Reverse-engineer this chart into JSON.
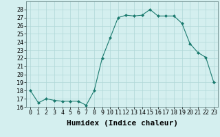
{
  "x": [
    0,
    1,
    2,
    3,
    4,
    5,
    6,
    7,
    8,
    9,
    10,
    11,
    12,
    13,
    14,
    15,
    16,
    17,
    18,
    19,
    20,
    21,
    22,
    23
  ],
  "y": [
    18,
    16.5,
    17,
    16.8,
    16.7,
    16.7,
    16.7,
    16.2,
    18,
    22,
    24.5,
    27,
    27.3,
    27.2,
    27.3,
    28,
    27.2,
    27.2,
    27.2,
    26.3,
    23.8,
    22.7,
    22.1,
    19
  ],
  "line_color": "#1a7a6e",
  "marker": "D",
  "marker_size": 2,
  "xlabel": "Humidex (Indice chaleur)",
  "xlim": [
    -0.5,
    23.5
  ],
  "ylim": [
    16,
    29
  ],
  "yticks": [
    16,
    17,
    18,
    19,
    20,
    21,
    22,
    23,
    24,
    25,
    26,
    27,
    28
  ],
  "xticks": [
    0,
    1,
    2,
    3,
    4,
    5,
    6,
    7,
    8,
    9,
    10,
    11,
    12,
    13,
    14,
    15,
    16,
    17,
    18,
    19,
    20,
    21,
    22,
    23
  ],
  "background_color": "#d4efef",
  "grid_color": "#b0d8d8",
  "tick_fontsize": 6,
  "xlabel_fontsize": 8
}
